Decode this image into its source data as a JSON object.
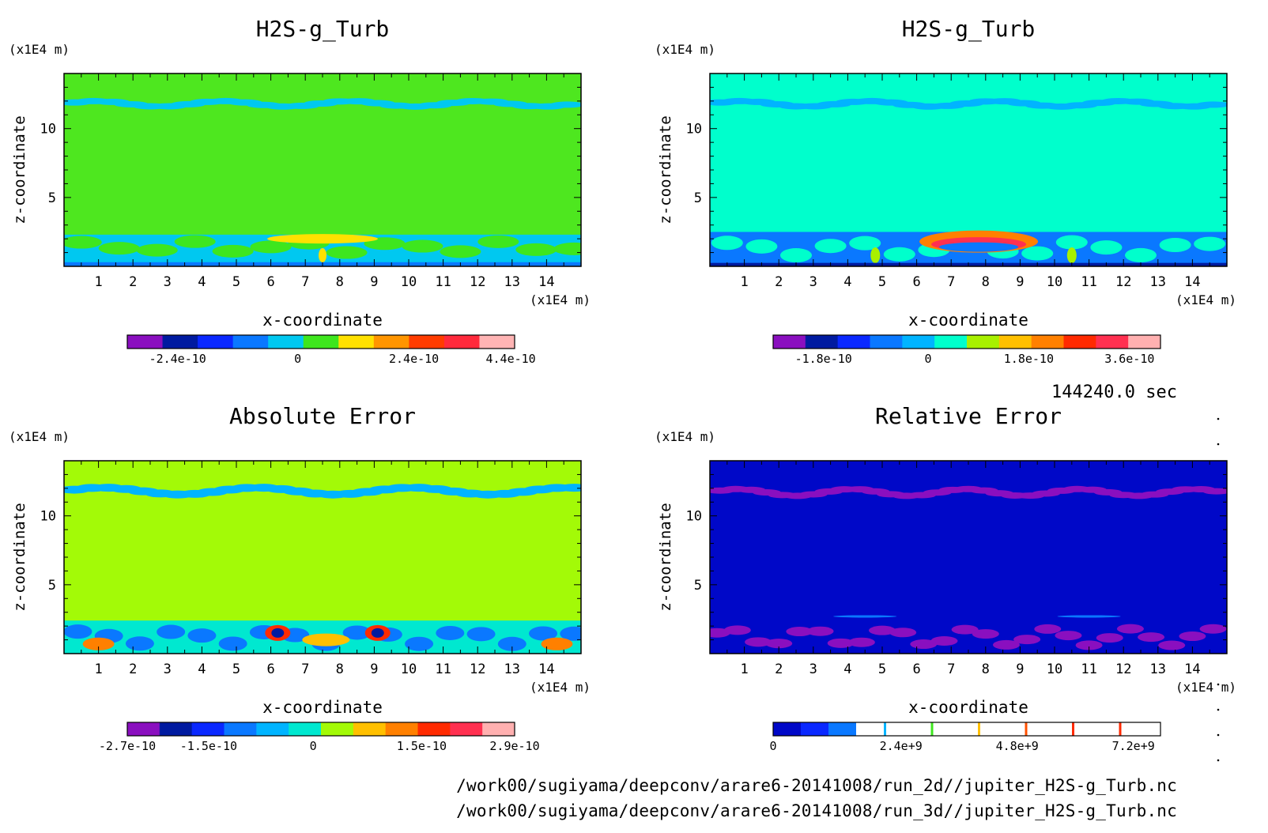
{
  "time_label": "144240.0 sec",
  "file_paths": [
    "/work00/sugiyama/deepconv/arare6-20141008/run_2d//jupiter_H2S-g_Turb.nc",
    "/work00/sugiyama/deepconv/arare6-20141008/run_3d//jupiter_H2S-g_Turb.nc"
  ],
  "colors": {
    "panel1_background": "#4ee71f",
    "panel2_background": "#00ffcc",
    "panel3_background": "#a3fa07",
    "panel4_background": "#0008c8"
  },
  "chart_data": [
    {
      "type": "heatmap",
      "title": "H2S-g_Turb",
      "xlabel": "x-coordinate",
      "ylabel": "z-coordinate",
      "x_unit": "(x1E4 m)",
      "y_unit": "(x1E4 m)",
      "xlim": [
        0,
        15
      ],
      "ylim": [
        0,
        14
      ],
      "x_ticks": [
        1,
        2,
        3,
        4,
        5,
        6,
        7,
        8,
        9,
        10,
        11,
        12,
        13,
        14
      ],
      "y_ticks": [
        5,
        10
      ],
      "colorbar": {
        "colors": [
          "#8a0fbf",
          "#001aa0",
          "#0a28ff",
          "#0a78ff",
          "#00c8f0",
          "#3ee61e",
          "#ffe100",
          "#ff9500",
          "#ff3c00",
          "#ff2a3c",
          "#ffb4b4"
        ],
        "tick_labels": [
          "-2.4e-10",
          "0",
          "2.4e-10",
          "4.4e-10"
        ]
      }
    },
    {
      "type": "heatmap",
      "title": "H2S-g_Turb",
      "xlabel": "x-coordinate",
      "ylabel": "z-coordinate",
      "x_unit": "(x1E4 m)",
      "y_unit": "(x1E4 m)",
      "xlim": [
        0,
        15
      ],
      "ylim": [
        0,
        14
      ],
      "x_ticks": [
        1,
        2,
        3,
        4,
        5,
        6,
        7,
        8,
        9,
        10,
        11,
        12,
        13,
        14
      ],
      "y_ticks": [
        5,
        10
      ],
      "colorbar": {
        "colors": [
          "#8a0fbf",
          "#001aa0",
          "#0a28ff",
          "#0a78ff",
          "#00b4ff",
          "#00ffcc",
          "#a8f000",
          "#ffc000",
          "#ff8000",
          "#ff2a00",
          "#ff3050",
          "#ffb0b0"
        ],
        "tick_labels": [
          "-1.8e-10",
          "0",
          "1.8e-10",
          "3.6e-10"
        ]
      }
    },
    {
      "type": "heatmap",
      "title": "Absolute Error",
      "xlabel": "x-coordinate",
      "ylabel": "z-coordinate",
      "x_unit": "(x1E4 m)",
      "y_unit": "(x1E4 m)",
      "xlim": [
        0,
        15
      ],
      "ylim": [
        0,
        14
      ],
      "x_ticks": [
        1,
        2,
        3,
        4,
        5,
        6,
        7,
        8,
        9,
        10,
        11,
        12,
        13,
        14
      ],
      "y_ticks": [
        5,
        10
      ],
      "colorbar": {
        "colors": [
          "#8a0fbf",
          "#001aa0",
          "#0a28ff",
          "#0a78ff",
          "#00b4ff",
          "#00e8d0",
          "#a3fa07",
          "#ffc000",
          "#ff8000",
          "#ff2a00",
          "#ff3050",
          "#ffb0b0"
        ],
        "tick_labels": [
          "-2.7e-10",
          "-1.5e-10",
          "0",
          "1.5e-10",
          "2.9e-10"
        ]
      }
    },
    {
      "type": "heatmap",
      "title": "Relative Error",
      "xlabel": "x-coordinate",
      "ylabel": "z-coordinate",
      "x_unit": "(x1E4 m)",
      "y_unit": "(x1E4 m)",
      "xlim": [
        0,
        15
      ],
      "ylim": [
        0,
        14
      ],
      "x_ticks": [
        1,
        2,
        3,
        4,
        5,
        6,
        7,
        8,
        9,
        10,
        11,
        12,
        13,
        14
      ],
      "y_ticks": [
        5,
        10
      ],
      "colorbar": {
        "colors": [
          "#0008c8",
          "#0a28ff",
          "#0a78ff",
          "#ffffff",
          "#ffffff",
          "#ffffff",
          "#ffffff",
          "#ffffff",
          "#ffffff",
          "#ffffff",
          "#ffffff",
          "#ffffff",
          "#ffffff",
          "#ffffff"
        ],
        "tick_labels": [
          "0",
          "2.4e+9",
          "4.8e+9",
          "7.2e+9"
        ]
      }
    }
  ]
}
